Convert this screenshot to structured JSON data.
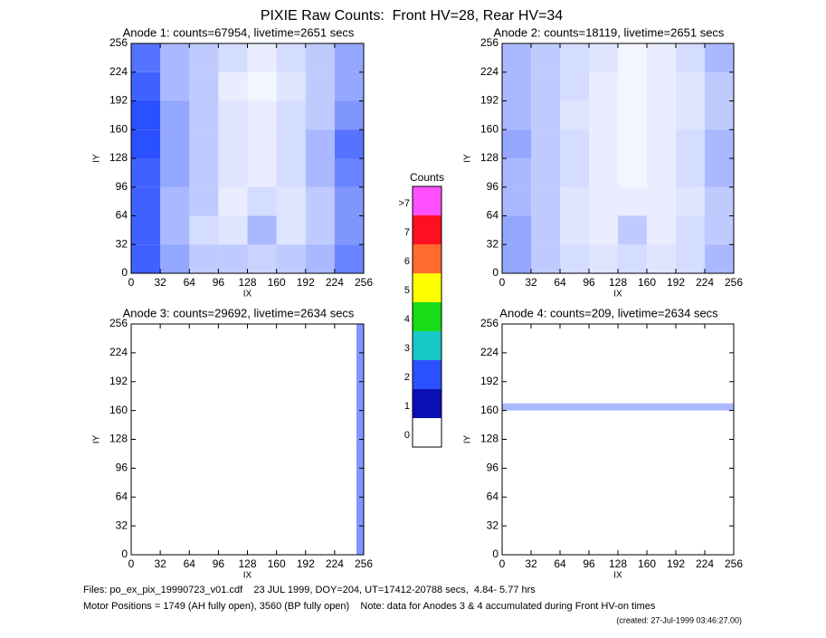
{
  "title": "PIXIE Raw Counts:  Front HV=28, Rear HV=34",
  "chart_data": [
    {
      "type": "heatmap",
      "title": "Anode 1: counts=67954, livetime=2651 secs",
      "xlabel": "IX",
      "ylabel": "IY",
      "xlim": [
        0,
        256
      ],
      "ylim": [
        0,
        256
      ],
      "xticks": [
        0,
        32,
        64,
        96,
        128,
        160,
        192,
        224,
        256
      ],
      "yticks": [
        0,
        32,
        64,
        96,
        128,
        160,
        192,
        224,
        256
      ],
      "z": [
        [
          0.9,
          0.5,
          0.3,
          0.3,
          0.25,
          0.3,
          0.4,
          0.7
        ],
        [
          0.9,
          0.4,
          0.2,
          0.15,
          0.4,
          0.15,
          0.3,
          0.6
        ],
        [
          0.9,
          0.4,
          0.3,
          0.1,
          0.2,
          0.15,
          0.3,
          0.6
        ],
        [
          0.9,
          0.5,
          0.3,
          0.15,
          0.1,
          0.2,
          0.4,
          0.7
        ],
        [
          1.0,
          0.5,
          0.3,
          0.15,
          0.1,
          0.2,
          0.4,
          0.8
        ],
        [
          1.0,
          0.5,
          0.3,
          0.15,
          0.1,
          0.2,
          0.3,
          0.6
        ],
        [
          0.9,
          0.4,
          0.3,
          0.1,
          0.05,
          0.15,
          0.3,
          0.5
        ],
        [
          0.8,
          0.4,
          0.3,
          0.2,
          0.1,
          0.2,
          0.3,
          0.5
        ]
      ]
    },
    {
      "type": "heatmap",
      "title": "Anode 2: counts=18119, livetime=2651 secs",
      "xlabel": "IX",
      "ylabel": "IY",
      "xlim": [
        0,
        256
      ],
      "ylim": [
        0,
        256
      ],
      "xticks": [
        0,
        32,
        64,
        96,
        128,
        160,
        192,
        224,
        256
      ],
      "yticks": [
        0,
        32,
        64,
        96,
        128,
        160,
        192,
        224,
        256
      ],
      "z": [
        [
          0.5,
          0.3,
          0.2,
          0.15,
          0.2,
          0.15,
          0.2,
          0.4
        ],
        [
          0.5,
          0.3,
          0.15,
          0.1,
          0.3,
          0.1,
          0.2,
          0.3
        ],
        [
          0.4,
          0.3,
          0.15,
          0.1,
          0.1,
          0.1,
          0.15,
          0.3
        ],
        [
          0.4,
          0.3,
          0.2,
          0.1,
          0.05,
          0.1,
          0.2,
          0.4
        ],
        [
          0.5,
          0.3,
          0.2,
          0.1,
          0.05,
          0.1,
          0.2,
          0.4
        ],
        [
          0.4,
          0.3,
          0.15,
          0.1,
          0.05,
          0.1,
          0.15,
          0.3
        ],
        [
          0.4,
          0.3,
          0.2,
          0.1,
          0.05,
          0.1,
          0.15,
          0.3
        ],
        [
          0.4,
          0.3,
          0.2,
          0.15,
          0.05,
          0.1,
          0.2,
          0.4
        ]
      ]
    },
    {
      "type": "heatmap",
      "title": "Anode 3: counts=29692, livetime=2634 secs",
      "xlabel": "IX",
      "ylabel": "IY",
      "xlim": [
        0,
        256
      ],
      "ylim": [
        0,
        256
      ],
      "xticks": [
        0,
        32,
        64,
        96,
        128,
        160,
        192,
        224,
        256
      ],
      "yticks": [
        0,
        32,
        64,
        96,
        128,
        160,
        192,
        224,
        256
      ],
      "z": [
        [
          0,
          0,
          0,
          0,
          0,
          0,
          0,
          0,
          0,
          0,
          0,
          0,
          0,
          0,
          0,
          0,
          0,
          0,
          0,
          0,
          0,
          0,
          0,
          0,
          0,
          0,
          0,
          0,
          0,
          0,
          0,
          0.6
        ]
      ]
    },
    {
      "type": "heatmap",
      "title": "Anode 4: counts=209, livetime=2634 secs",
      "xlabel": "IX",
      "ylabel": "IY",
      "xlim": [
        0,
        256
      ],
      "ylim": [
        0,
        256
      ],
      "xticks": [
        0,
        32,
        64,
        96,
        128,
        160,
        192,
        224,
        256
      ],
      "yticks": [
        0,
        32,
        64,
        96,
        128,
        160,
        192,
        224,
        256
      ],
      "z": [
        [
          0
        ],
        [
          0
        ],
        [
          0
        ],
        [
          0
        ],
        [
          0
        ],
        [
          0
        ],
        [
          0
        ],
        [
          0
        ],
        [
          0
        ],
        [
          0
        ],
        [
          0
        ],
        [
          0
        ],
        [
          0
        ],
        [
          0
        ],
        [
          0
        ],
        [
          0
        ],
        [
          0
        ],
        [
          0
        ],
        [
          0
        ],
        [
          0
        ],
        [
          0.4
        ],
        [
          0
        ],
        [
          0
        ],
        [
          0
        ],
        [
          0
        ],
        [
          0
        ],
        [
          0
        ],
        [
          0
        ],
        [
          0
        ],
        [
          0
        ],
        [
          0
        ],
        [
          0
        ]
      ]
    }
  ],
  "colorbar": {
    "title": "Counts",
    "labels": [
      "0",
      "1",
      "2",
      "3",
      "4",
      "5",
      "6",
      "7",
      ">7"
    ],
    "colors": [
      "#ffffff",
      "#0a10b4",
      "#2a50ff",
      "#18c8c8",
      "#18dc18",
      "#ffff00",
      "#ff6a30",
      "#ff1020",
      "#ff50ff"
    ]
  },
  "footer": [
    "Files: po_ex_pix_19990723_v01.cdf    23 JUL 1999, DOY=204, UT=17412-20788 secs,  4.84- 5.77 hrs",
    "Motor Positions = 1749 (AH fully open), 3560 (BP fully open)    Note: data for Anodes 3 & 4 accumulated during Front HV-on times",
    "(created: 27-Jul-1999 03:46:27.00)"
  ]
}
